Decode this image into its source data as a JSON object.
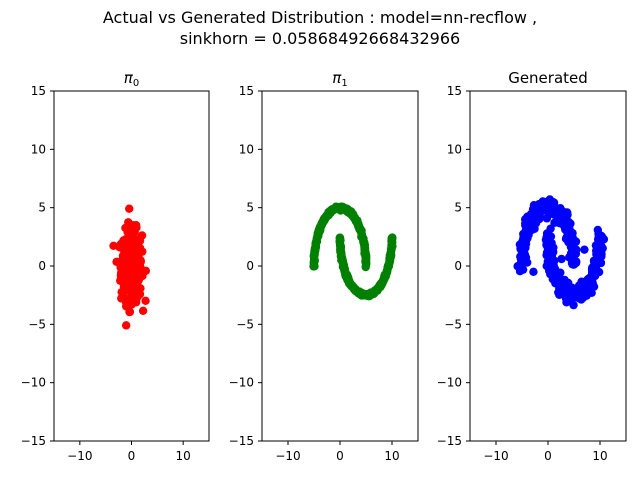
{
  "figure": {
    "title_line1": "Actual vs Generated Distribution : model=nn-recflow ,",
    "title_line2": "sinkhorn = 0.05868492668432966"
  },
  "chart_data": [
    {
      "type": "scatter",
      "title": "π0",
      "title_main": "π",
      "title_sub": "0",
      "color": "#ff0000",
      "xlim": [
        -15,
        15
      ],
      "ylim": [
        -15,
        15
      ],
      "xticks": [
        -10,
        0,
        10
      ],
      "yticks": [
        -15,
        -10,
        -5,
        0,
        5,
        10,
        15
      ],
      "grid": false,
      "distribution": "gaussian",
      "center": [
        0,
        0
      ],
      "std": [
        1.0,
        1.5
      ],
      "count": 400
    },
    {
      "type": "scatter",
      "title": "π1",
      "title_main": "π",
      "title_sub": "1",
      "color": "#008000",
      "xlim": [
        -15,
        15
      ],
      "ylim": [
        -15,
        15
      ],
      "xticks": [
        -10,
        0,
        10
      ],
      "yticks": [
        -15,
        -10,
        -5,
        0,
        5,
        10,
        15
      ],
      "grid": false,
      "distribution": "two-moons",
      "moon_radius": 5,
      "upper_moon_center": [
        0,
        0
      ],
      "lower_moon_center": [
        5,
        0
      ],
      "lower_moon_y_offset": 2.5,
      "count": 500
    },
    {
      "type": "scatter",
      "title": "Generated",
      "title_main": "Generated",
      "title_sub": "",
      "color": "#0000ff",
      "xlim": [
        -15,
        15
      ],
      "ylim": [
        -15,
        15
      ],
      "xticks": [
        -10,
        0,
        10
      ],
      "yticks": [
        -15,
        -10,
        -5,
        0,
        5,
        10,
        15
      ],
      "grid": false,
      "distribution": "two-moons-noisy",
      "moon_radius": 5,
      "upper_moon_center": [
        0,
        0
      ],
      "lower_moon_center": [
        5,
        0
      ],
      "lower_moon_y_offset": 2.5,
      "count": 500
    }
  ]
}
